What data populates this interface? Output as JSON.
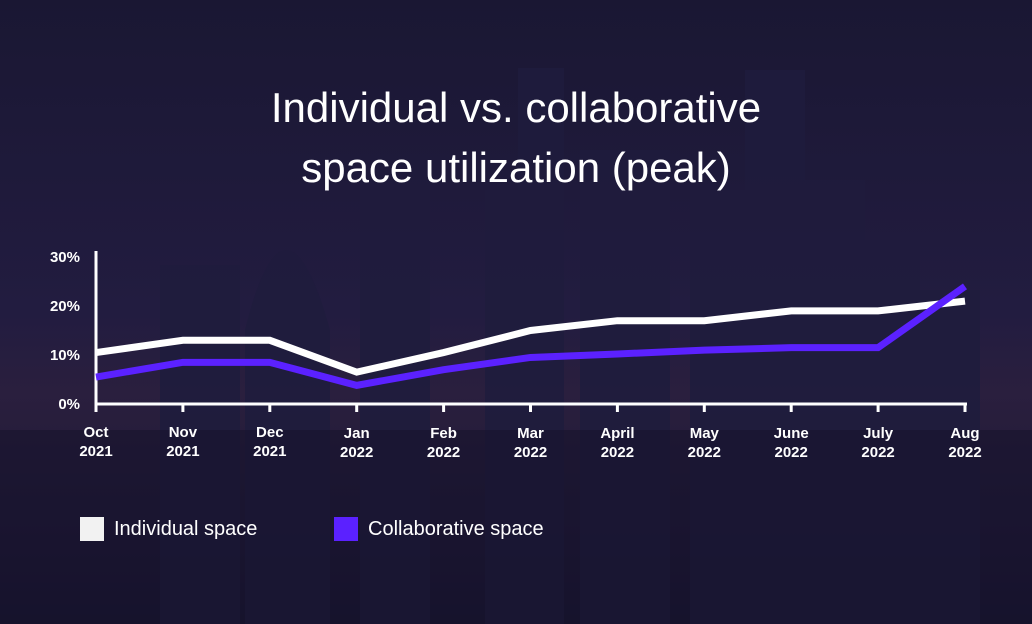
{
  "chart_data": {
    "type": "line",
    "title": [
      "Individual vs. collaborative",
      "space utilization (peak)"
    ],
    "categories": [
      [
        "Oct",
        "2021"
      ],
      [
        "Nov",
        "2021"
      ],
      [
        "Dec",
        "2021"
      ],
      [
        "Jan",
        "2022"
      ],
      [
        "Feb",
        "2022"
      ],
      [
        "Mar",
        "2022"
      ],
      [
        "April",
        "2022"
      ],
      [
        "May",
        "2022"
      ],
      [
        "June",
        "2022"
      ],
      [
        "July",
        "2022"
      ],
      [
        "Aug",
        "2022"
      ]
    ],
    "yticks": [
      "0%",
      "10%",
      "20%",
      "30%"
    ],
    "ylim": [
      0,
      30
    ],
    "series": [
      {
        "name": "Individual space",
        "color": "#ffffff",
        "values": [
          10.5,
          13,
          13,
          6.5,
          10.5,
          15,
          17,
          17,
          19,
          19,
          21
        ]
      },
      {
        "name": "Collaborative space",
        "color": "#5b21ff",
        "values": [
          5.5,
          8.5,
          8.5,
          3.8,
          7,
          9.5,
          10.2,
          11,
          11.5,
          11.5,
          24
        ]
      }
    ],
    "legend": {
      "position": "bottom-left",
      "items": [
        {
          "label": "Individual space",
          "color": "#f2f2f2"
        },
        {
          "label": "Collaborative space",
          "color": "#5b21ff"
        }
      ]
    },
    "grid": false
  }
}
